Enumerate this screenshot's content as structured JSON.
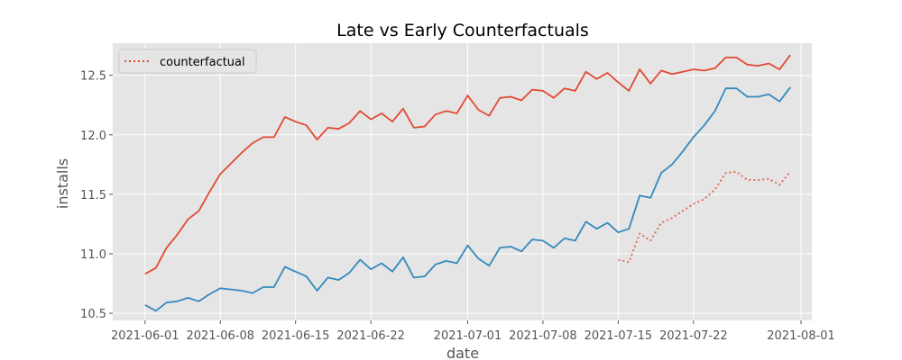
{
  "chart_data": {
    "type": "line",
    "title": "Late vs Early Counterfactuals",
    "xlabel": "date",
    "ylabel": "installs",
    "xlim": [
      "2021-05-29",
      "2021-08-02"
    ],
    "ylim": [
      10.44,
      12.77
    ],
    "x_ticks": [
      "2021-06-01",
      "2021-06-08",
      "2021-06-15",
      "2021-06-22",
      "2021-07-01",
      "2021-07-08",
      "2021-07-15",
      "2021-07-22",
      "2021-08-01"
    ],
    "y_ticks": [
      10.5,
      11.0,
      11.5,
      12.0,
      12.5
    ],
    "grid": true,
    "legend_position": "top-left",
    "background_color": "#e5e5e5",
    "series": [
      {
        "style": "solid",
        "color": "#e24a33",
        "x_start": "2021-06-01",
        "values": [
          10.83,
          10.88,
          11.05,
          11.16,
          11.29,
          11.36,
          11.52,
          11.67,
          11.76,
          11.85,
          11.93,
          11.98,
          11.98,
          12.15,
          12.11,
          12.08,
          11.96,
          12.06,
          12.05,
          12.1,
          12.2,
          12.13,
          12.18,
          12.11,
          12.22,
          12.06,
          12.07,
          12.17,
          12.2,
          12.18,
          12.33,
          12.21,
          12.16,
          12.31,
          12.32,
          12.29,
          12.38,
          12.37,
          12.31,
          12.39,
          12.37,
          12.53,
          12.47,
          12.52,
          12.44,
          12.37,
          12.55,
          12.43,
          12.54,
          12.51,
          12.53,
          12.55,
          12.54,
          12.56,
          12.65,
          12.65,
          12.59,
          12.58,
          12.6,
          12.55,
          12.67
        ]
      },
      {
        "style": "solid",
        "color": "#348abd",
        "x_start": "2021-06-01",
        "values": [
          10.57,
          10.52,
          10.59,
          10.6,
          10.63,
          10.6,
          10.66,
          10.71,
          10.7,
          10.69,
          10.67,
          10.72,
          10.72,
          10.89,
          10.85,
          10.81,
          10.69,
          10.8,
          10.78,
          10.84,
          10.95,
          10.87,
          10.92,
          10.85,
          10.97,
          10.8,
          10.81,
          10.91,
          10.94,
          10.92,
          11.07,
          10.96,
          10.9,
          11.05,
          11.06,
          11.02,
          11.12,
          11.11,
          11.05,
          11.13,
          11.11,
          11.27,
          11.21,
          11.26,
          11.18,
          11.21,
          11.49,
          11.47,
          11.68,
          11.75,
          11.86,
          11.98,
          12.08,
          12.2,
          12.39,
          12.39,
          12.32,
          12.32,
          12.34,
          12.28,
          12.4
        ]
      },
      {
        "name": "counterfactual",
        "style": "dotted",
        "color": "#e24a33",
        "x_start": "2021-07-15",
        "values": [
          10.95,
          10.93,
          11.17,
          11.11,
          11.26,
          11.3,
          11.36,
          11.42,
          11.46,
          11.54,
          11.68,
          11.69,
          11.62,
          11.62,
          11.63,
          11.58,
          11.69
        ]
      }
    ]
  }
}
